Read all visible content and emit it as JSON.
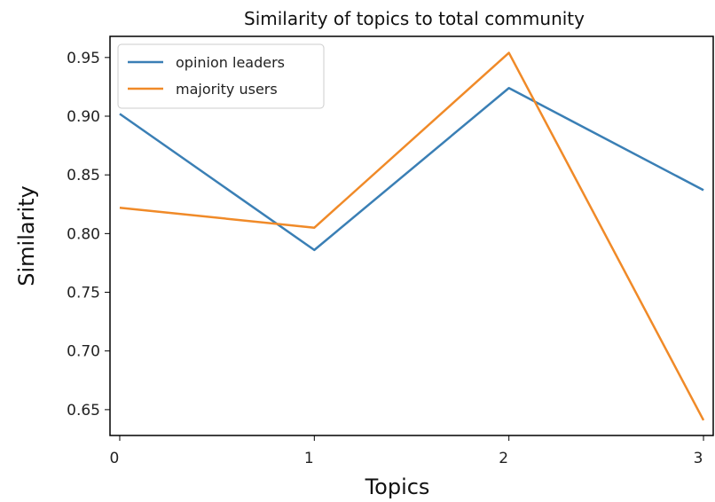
{
  "chart_data": {
    "type": "line",
    "title": "Similarity of topics to total community",
    "xlabel": "Topics",
    "ylabel": "Similarity",
    "x": [
      0,
      1,
      2,
      3
    ],
    "xticks": [
      "0",
      "1",
      "2",
      "3"
    ],
    "yticks": [
      "0.65",
      "0.70",
      "0.75",
      "0.80",
      "0.85",
      "0.90",
      "0.95"
    ],
    "xlim": [
      -0.05,
      3.05
    ],
    "ylim": [
      0.628,
      0.968
    ],
    "grid": false,
    "legend_position": "top-left",
    "series": [
      {
        "name": "opinion leaders",
        "color": "#3a7fb5",
        "values": [
          0.902,
          0.786,
          0.924,
          0.837
        ]
      },
      {
        "name": "majority users",
        "color": "#f08a28",
        "values": [
          0.822,
          0.805,
          0.954,
          0.641
        ]
      }
    ]
  }
}
